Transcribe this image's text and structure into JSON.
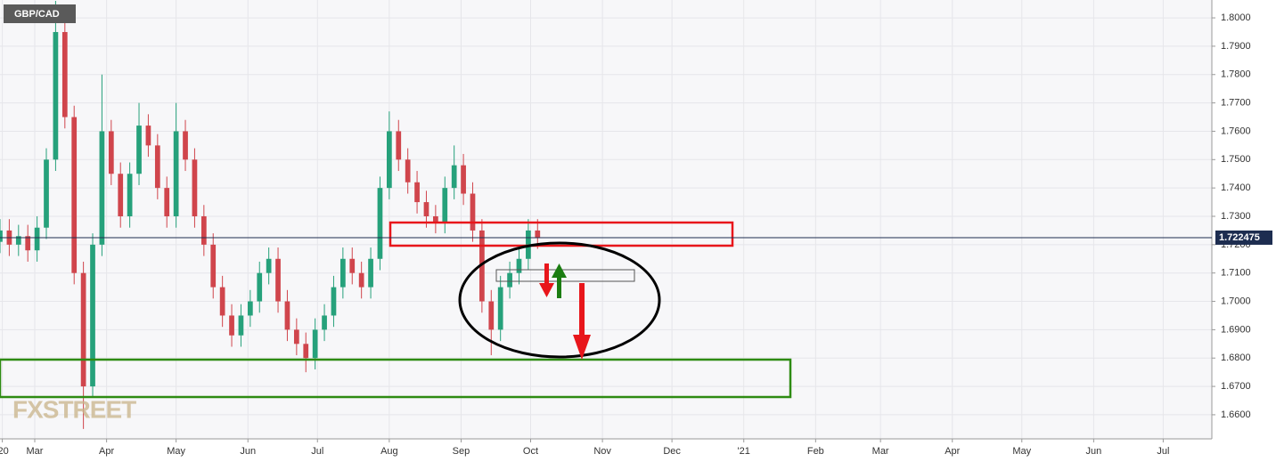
{
  "chart_data": {
    "type": "candlestick",
    "title": "GBP/CAD",
    "watermark": "FXSTREET",
    "x": [
      0,
      4,
      8,
      12,
      16,
      20,
      24,
      28,
      32,
      36,
      40,
      44,
      48,
      52,
      56,
      60,
      64,
      68,
      72,
      76,
      80,
      84,
      88,
      92,
      96,
      100,
      104,
      108,
      112,
      116,
      120,
      124,
      128,
      132,
      136,
      140,
      144,
      148,
      152,
      156,
      160,
      164,
      168,
      172,
      176,
      180,
      184,
      188,
      192,
      196,
      200,
      204,
      208,
      212,
      216,
      220,
      224,
      228,
      232
    ],
    "open": [
      1.721,
      1.725,
      1.72,
      1.723,
      1.718,
      1.726,
      1.75,
      1.795,
      1.765,
      1.71,
      1.67,
      1.72,
      1.76,
      1.745,
      1.73,
      1.745,
      1.762,
      1.755,
      1.74,
      1.73,
      1.76,
      1.75,
      1.73,
      1.72,
      1.705,
      1.695,
      1.688,
      1.695,
      1.7,
      1.71,
      1.715,
      1.7,
      1.69,
      1.685,
      1.68,
      1.69,
      1.695,
      1.705,
      1.715,
      1.71,
      1.705,
      1.715,
      1.74,
      1.76,
      1.75,
      1.742,
      1.735,
      1.73,
      1.728,
      1.74,
      1.748,
      1.738,
      1.725,
      1.7,
      1.69,
      1.705,
      1.71,
      1.715,
      1.725
    ],
    "high": [
      1.729,
      1.729,
      1.727,
      1.727,
      1.73,
      1.754,
      1.806,
      1.799,
      1.769,
      1.714,
      1.724,
      1.78,
      1.764,
      1.749,
      1.749,
      1.77,
      1.766,
      1.759,
      1.744,
      1.77,
      1.764,
      1.754,
      1.734,
      1.724,
      1.709,
      1.699,
      1.699,
      1.704,
      1.714,
      1.719,
      1.719,
      1.704,
      1.694,
      1.689,
      1.694,
      1.699,
      1.709,
      1.719,
      1.719,
      1.714,
      1.719,
      1.744,
      1.767,
      1.764,
      1.754,
      1.746,
      1.739,
      1.734,
      1.744,
      1.755,
      1.752,
      1.742,
      1.729,
      1.704,
      1.709,
      1.714,
      1.719,
      1.729,
      1.729
    ],
    "low": [
      1.717,
      1.716,
      1.716,
      1.714,
      1.714,
      1.722,
      1.746,
      1.761,
      1.706,
      1.655,
      1.666,
      1.716,
      1.741,
      1.726,
      1.726,
      1.741,
      1.751,
      1.736,
      1.726,
      1.726,
      1.746,
      1.726,
      1.716,
      1.701,
      1.691,
      1.684,
      1.684,
      1.691,
      1.696,
      1.706,
      1.696,
      1.686,
      1.681,
      1.675,
      1.676,
      1.686,
      1.691,
      1.701,
      1.706,
      1.701,
      1.701,
      1.711,
      1.736,
      1.746,
      1.738,
      1.731,
      1.726,
      1.724,
      1.724,
      1.736,
      1.734,
      1.721,
      1.696,
      1.681,
      1.686,
      1.701,
      1.706,
      1.711,
      1.7185
    ],
    "close": [
      1.725,
      1.72,
      1.723,
      1.718,
      1.726,
      1.75,
      1.795,
      1.765,
      1.71,
      1.67,
      1.72,
      1.76,
      1.745,
      1.73,
      1.745,
      1.762,
      1.755,
      1.74,
      1.73,
      1.76,
      1.75,
      1.73,
      1.72,
      1.705,
      1.695,
      1.688,
      1.695,
      1.7,
      1.71,
      1.715,
      1.7,
      1.69,
      1.685,
      1.68,
      1.69,
      1.695,
      1.705,
      1.715,
      1.71,
      1.705,
      1.715,
      1.74,
      1.76,
      1.75,
      1.742,
      1.735,
      1.73,
      1.728,
      1.74,
      1.748,
      1.738,
      1.725,
      1.7,
      1.69,
      1.705,
      1.71,
      1.715,
      1.725,
      1.7225
    ],
    "up_color": "#26a17b",
    "down_color": "#d0454c",
    "last_price": 1.722475,
    "xlim": [
      0,
      523
    ],
    "xticks": [
      {
        "value": 1,
        "label": "'20"
      },
      {
        "value": 15,
        "label": "Mar"
      },
      {
        "value": 46,
        "label": "Apr"
      },
      {
        "value": 76,
        "label": "May"
      },
      {
        "value": 107,
        "label": "Jun"
      },
      {
        "value": 137,
        "label": "Jul"
      },
      {
        "value": 168,
        "label": "Aug"
      },
      {
        "value": 199,
        "label": "Sep"
      },
      {
        "value": 229,
        "label": "Oct"
      },
      {
        "value": 260,
        "label": "Nov"
      },
      {
        "value": 290,
        "label": "Dec"
      },
      {
        "value": 321,
        "label": "'21"
      },
      {
        "value": 352,
        "label": "Feb"
      },
      {
        "value": 380,
        "label": "Mar"
      },
      {
        "value": 411,
        "label": "Apr"
      },
      {
        "value": 441,
        "label": "May"
      },
      {
        "value": 472,
        "label": "Jun"
      },
      {
        "value": 502,
        "label": "Jul"
      }
    ],
    "ylim": [
      1.6515,
      1.8063
    ],
    "yticks": [
      {
        "value": 1.66,
        "label": "1.6600"
      },
      {
        "value": 1.67,
        "label": "1.6700"
      },
      {
        "value": 1.68,
        "label": "1.6800"
      },
      {
        "value": 1.69,
        "label": "1.6900"
      },
      {
        "value": 1.7,
        "label": "1.7000"
      },
      {
        "value": 1.71,
        "label": "1.7100"
      },
      {
        "value": 1.72,
        "label": "1.7200"
      },
      {
        "value": 1.73,
        "label": "1.7300"
      },
      {
        "value": 1.74,
        "label": "1.7400"
      },
      {
        "value": 1.75,
        "label": "1.7500"
      },
      {
        "value": 1.76,
        "label": "1.7600"
      },
      {
        "value": 1.77,
        "label": "1.7700"
      },
      {
        "value": 1.78,
        "label": "1.7800"
      },
      {
        "value": 1.79,
        "label": "1.7900"
      },
      {
        "value": 1.8,
        "label": "1.8000"
      }
    ],
    "grid": true
  }
}
